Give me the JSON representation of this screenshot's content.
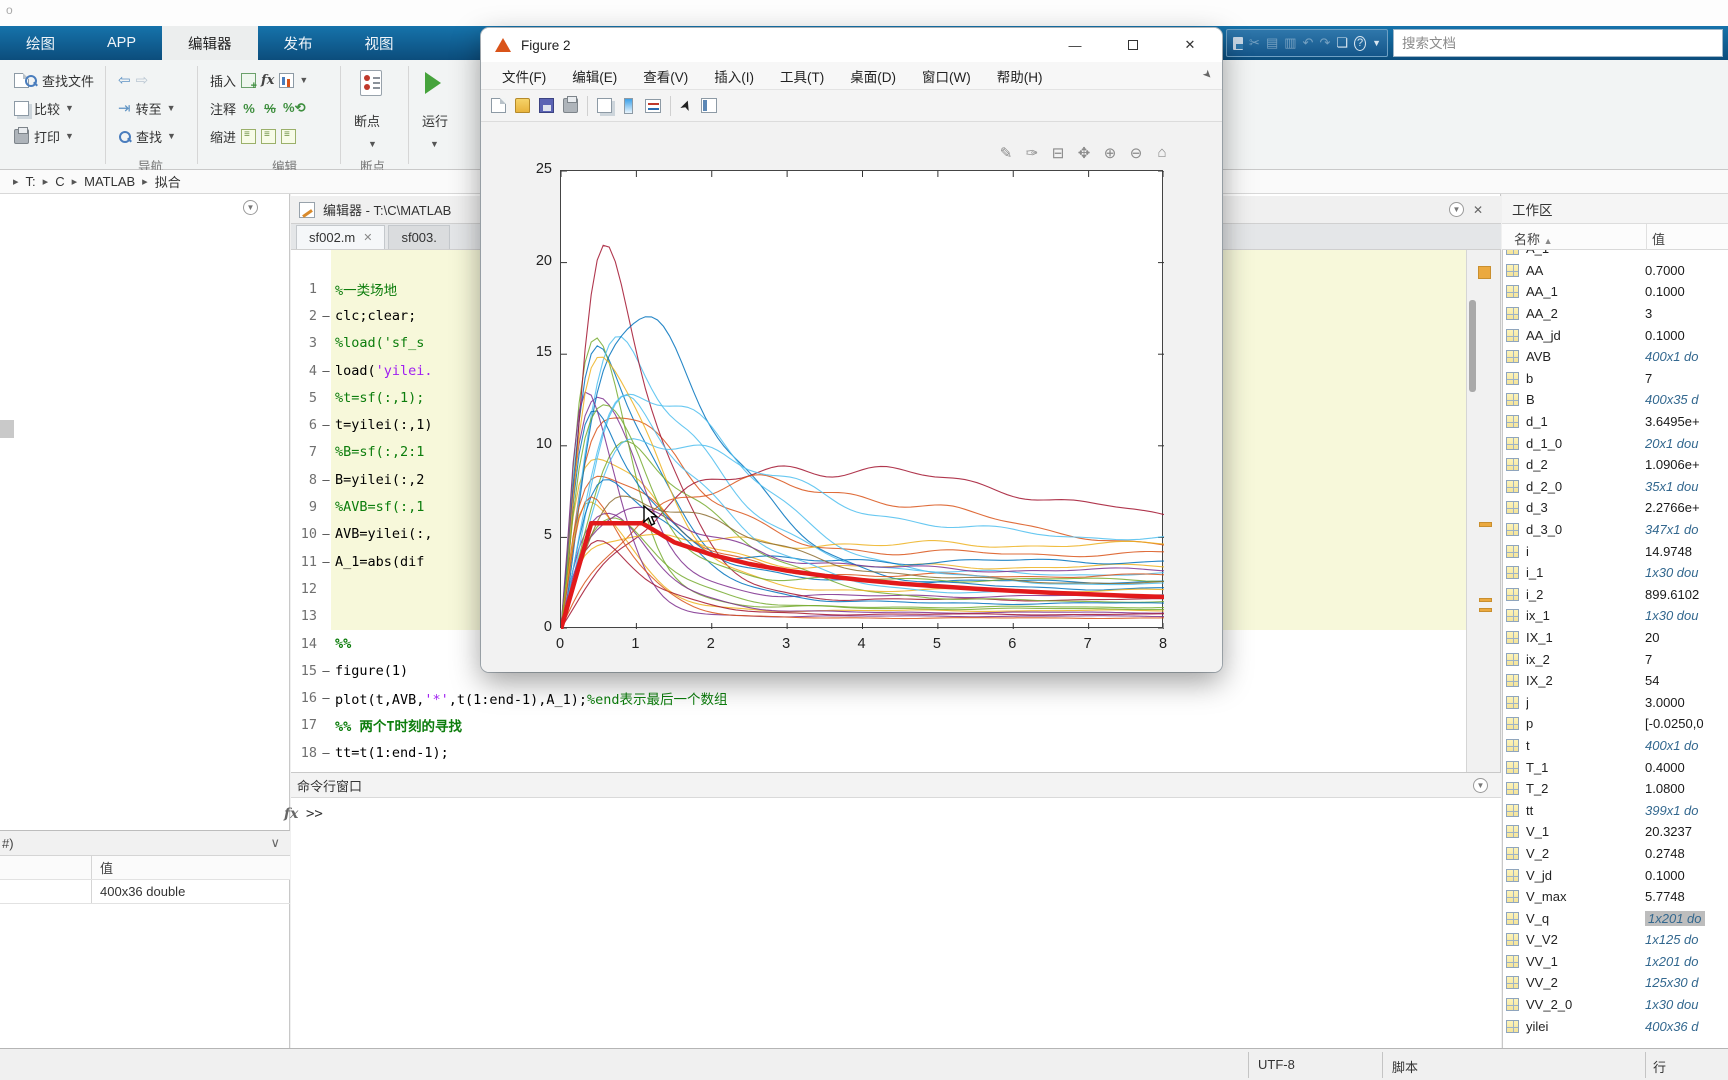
{
  "overlay": {
    "corner_mark": "o"
  },
  "ribbon": {
    "tabs": [
      {
        "id": "plots",
        "label": "绘图"
      },
      {
        "id": "apps",
        "label": "APP"
      },
      {
        "id": "editor",
        "label": "编辑器"
      },
      {
        "id": "publish",
        "label": "发布"
      },
      {
        "id": "view",
        "label": "视图"
      }
    ],
    "active_tab": "编辑器",
    "file_group": {
      "find_files": "查找文件",
      "compare": "比较",
      "print": "打印"
    },
    "nav_group": {
      "goto": "转至",
      "find": "查找",
      "label": "导航"
    },
    "edit_group": {
      "insert": "插入",
      "comment": "注释",
      "indent": "缩进",
      "fx": "fx",
      "label": "编辑"
    },
    "breakpoint_group": {
      "button": "断点",
      "label": "断点"
    },
    "run_group": {
      "run": "运行"
    },
    "search_placeholder": "搜索文档"
  },
  "breadcrumb": {
    "items": [
      "T:",
      "C",
      "MATLAB",
      "拟合"
    ]
  },
  "figure_window": {
    "title": "Figure 2",
    "menus": [
      "文件(F)",
      "编辑(E)",
      "查看(V)",
      "插入(I)",
      "工具(T)",
      "桌面(D)",
      "窗口(W)",
      "帮助(H)"
    ],
    "toolbar_icons": [
      "new-figure",
      "open",
      "save",
      "print",
      "link-plot",
      "insert-colorbar",
      "insert-legend",
      "pointer",
      "property-inspector"
    ],
    "axes_toolbar_icons": [
      "export",
      "brush",
      "datatips",
      "pan",
      "zoom-in",
      "zoom-out",
      "restore-view"
    ]
  },
  "chart_data": {
    "type": "line",
    "title": "",
    "xlabel": "",
    "ylabel": "",
    "xlim": [
      0,
      8
    ],
    "ylim": [
      0,
      25
    ],
    "xticks": [
      0,
      1,
      2,
      3,
      4,
      5,
      6,
      7,
      8
    ],
    "yticks": [
      0,
      5,
      10,
      15,
      20,
      25
    ],
    "grid": false,
    "legend": "none",
    "red_curve": {
      "name": "fitted design spectrum (thick red)",
      "color": "#e2191b",
      "points": [
        [
          0,
          0
        ],
        [
          0.4,
          5.77
        ],
        [
          1.08,
          5.77
        ],
        [
          1.5,
          4.74
        ],
        [
          2,
          4.05
        ],
        [
          2.5,
          3.55
        ],
        [
          3,
          3.18
        ],
        [
          3.5,
          2.9
        ],
        [
          4,
          2.67
        ],
        [
          4.5,
          2.48
        ],
        [
          5,
          2.33
        ],
        [
          5.5,
          2.2
        ],
        [
          6,
          2.08
        ],
        [
          6.5,
          1.98
        ],
        [
          7,
          1.9
        ],
        [
          7.5,
          1.82
        ],
        [
          8,
          1.75
        ]
      ]
    },
    "ensemble": {
      "description": "individual response-spectrum curves (thin lines), parametric peaks",
      "series": [
        {
          "color": "#0072BD",
          "peak_x": 0.55,
          "peak_y": 14.8,
          "tail_y": 2.6,
          "phase": 0.3,
          "exp": 1.4
        },
        {
          "color": "#D95319",
          "peak_x": 0.75,
          "peak_y": 12.4,
          "tail_y": 4.1,
          "phase": 1.1,
          "exp": 1.4
        },
        {
          "color": "#EDB120",
          "peak_x": 0.5,
          "peak_y": 10.2,
          "tail_y": 3.4,
          "phase": 2.0,
          "exp": 1.2
        },
        {
          "color": "#7E2F8E",
          "peak_x": 0.45,
          "peak_y": 13.6,
          "tail_y": 1.8,
          "phase": 2.8,
          "exp": 1.4
        },
        {
          "color": "#77AC30",
          "peak_x": 0.42,
          "peak_y": 16.0,
          "tail_y": 1.2,
          "phase": 3.6,
          "exp": 1.6
        },
        {
          "color": "#4DBEEE",
          "peak_x": 0.85,
          "peak_y": 15.2,
          "tail_y": 3.0,
          "phase": 4.4,
          "exp": 1.4
        },
        {
          "color": "#A2142F",
          "peak_x": 0.62,
          "peak_y": 20.3,
          "tail_y": 1.6,
          "phase": 5.2,
          "exp": 1.8
        },
        {
          "color": "#0072BD",
          "peak_x": 1.0,
          "peak_y": 17.5,
          "tail_y": 2.2,
          "phase": 0.7,
          "exp": 1.6
        },
        {
          "color": "#D95319",
          "peak_x": 0.58,
          "peak_y": 9.0,
          "tail_y": 2.9,
          "phase": 1.5,
          "exp": 1.2
        },
        {
          "color": "#EDB120",
          "peak_x": 0.4,
          "peak_y": 7.6,
          "tail_y": 1.0,
          "phase": 2.3,
          "exp": 1.4
        },
        {
          "color": "#7E2F8E",
          "peak_x": 0.52,
          "peak_y": 6.4,
          "tail_y": 0.9,
          "phase": 3.1,
          "exp": 1.3
        },
        {
          "color": "#77AC30",
          "peak_x": 0.95,
          "peak_y": 9.6,
          "tail_y": 1.5,
          "phase": 3.9,
          "exp": 1.4
        },
        {
          "color": "#4DBEEE",
          "peak_x": 1.15,
          "peak_y": 13.4,
          "tail_y": 2.4,
          "phase": 4.7,
          "exp": 1.5
        },
        {
          "color": "#A2142F",
          "peak_x": 3.4,
          "peak_y": 8.8,
          "tail_y": 1.9,
          "phase": 5.5,
          "exp": 1.0
        },
        {
          "color": "#0072BD",
          "peak_x": 0.48,
          "peak_y": 11.2,
          "tail_y": 3.7,
          "phase": 0.2,
          "exp": 1.4
        },
        {
          "color": "#D95319",
          "peak_x": 2.6,
          "peak_y": 7.9,
          "tail_y": 2.3,
          "phase": 1.0,
          "exp": 1.0
        },
        {
          "color": "#EDB120",
          "peak_x": 0.7,
          "peak_y": 5.2,
          "tail_y": 4.6,
          "phase": 1.8,
          "exp": 1.2
        },
        {
          "color": "#7E2F8E",
          "peak_x": 0.35,
          "peak_y": 14.2,
          "tail_y": 0.7,
          "phase": 2.6,
          "exp": 1.7
        },
        {
          "color": "#77AC30",
          "peak_x": 0.6,
          "peak_y": 5.8,
          "tail_y": 1.1,
          "phase": 3.4,
          "exp": 1.3
        },
        {
          "color": "#4DBEEE",
          "peak_x": 1.3,
          "peak_y": 10.6,
          "tail_y": 4.9,
          "phase": 4.2,
          "exp": 1.3
        },
        {
          "color": "#A2142F",
          "peak_x": 0.5,
          "peak_y": 4.6,
          "tail_y": 0.8,
          "phase": 5.0,
          "exp": 1.3
        },
        {
          "color": "#0072BD",
          "peak_x": 0.68,
          "peak_y": 8.2,
          "tail_y": 1.4,
          "phase": 5.8,
          "exp": 1.4
        },
        {
          "color": "#D95319",
          "peak_x": 0.44,
          "peak_y": 6.8,
          "tail_y": 0.6,
          "phase": 0.5,
          "exp": 1.4
        },
        {
          "color": "#EDB120",
          "peak_x": 0.58,
          "peak_y": 15.8,
          "tail_y": 2.1,
          "phase": 1.3,
          "exp": 1.6
        },
        {
          "color": "#7E2F8E",
          "peak_x": 0.8,
          "peak_y": 6.6,
          "tail_y": 3.2,
          "phase": 2.1,
          "exp": 1.1
        },
        {
          "color": "#77AC30",
          "peak_x": 0.5,
          "peak_y": 12.8,
          "tail_y": 2.7,
          "phase": 2.9,
          "exp": 1.5
        },
        {
          "color": "#4DBEEE",
          "peak_x": 0.9,
          "peak_y": 11.8,
          "tail_y": 1.9,
          "phase": 3.7,
          "exp": 1.4
        },
        {
          "color": "#8c6d31",
          "peak_x": 1.05,
          "peak_y": 7.2,
          "tail_y": 2.5,
          "phase": 4.5,
          "exp": 1.2
        }
      ]
    }
  },
  "editor": {
    "title": "编辑器 - T:\\C\\MATLAB",
    "tabs": [
      "sf002.m",
      "sf003."
    ],
    "active_tab": "sf002.m",
    "lines": [
      {
        "n": 1,
        "exec": false,
        "segs": [
          {
            "t": "%一类场地",
            "k": "comment"
          }
        ]
      },
      {
        "n": 2,
        "exec": true,
        "segs": [
          {
            "t": "clc;clear;",
            "k": "code"
          }
        ]
      },
      {
        "n": 3,
        "exec": false,
        "segs": [
          {
            "t": "%load('sf_s",
            "k": "comment"
          }
        ]
      },
      {
        "n": 4,
        "exec": true,
        "segs": [
          {
            "t": "load(",
            "k": "code"
          },
          {
            "t": "'yilei.",
            "k": "string"
          }
        ]
      },
      {
        "n": 5,
        "exec": false,
        "segs": [
          {
            "t": "%t=sf(:,1);",
            "k": "comment"
          }
        ]
      },
      {
        "n": 6,
        "exec": true,
        "segs": [
          {
            "t": "t=yilei(:,1)",
            "k": "code"
          }
        ]
      },
      {
        "n": 7,
        "exec": false,
        "segs": [
          {
            "t": "%B=sf(:,2:1",
            "k": "comment"
          }
        ]
      },
      {
        "n": 8,
        "exec": true,
        "segs": [
          {
            "t": "B=yilei(:,2",
            "k": "code"
          }
        ]
      },
      {
        "n": 9,
        "exec": false,
        "segs": [
          {
            "t": "%AVB=sf(:,1",
            "k": "comment"
          }
        ]
      },
      {
        "n": 10,
        "exec": true,
        "segs": [
          {
            "t": "AVB=yilei(:,",
            "k": "code"
          }
        ]
      },
      {
        "n": 11,
        "exec": true,
        "segs": [
          {
            "t": "A_1=abs(dif",
            "k": "code"
          }
        ]
      },
      {
        "n": 12,
        "exec": false,
        "segs": []
      },
      {
        "n": 13,
        "exec": false,
        "segs": []
      },
      {
        "n": 14,
        "exec": false,
        "segs": [
          {
            "t": "%%",
            "k": "section"
          }
        ]
      },
      {
        "n": 15,
        "exec": true,
        "segs": [
          {
            "t": "figure(1)",
            "k": "code"
          }
        ]
      },
      {
        "n": 16,
        "exec": true,
        "segs": [
          {
            "t": "plot(t,AVB,",
            "k": "code"
          },
          {
            "t": "'*'",
            "k": "string"
          },
          {
            "t": ",t(1:end-1),A_1);",
            "k": "code"
          },
          {
            "t": "%end表示最后一个数组",
            "k": "comment"
          }
        ]
      },
      {
        "n": 17,
        "exec": false,
        "segs": [
          {
            "t": "%% 两个T时刻的寻找",
            "k": "section"
          }
        ]
      },
      {
        "n": 18,
        "exec": true,
        "segs": [
          {
            "t": "tt=t(1:end-1);",
            "k": "code"
          }
        ]
      }
    ]
  },
  "command_window": {
    "title": "命令行窗口",
    "fx": "fx",
    "prompt": ">>"
  },
  "details_panel": {
    "header": "#)",
    "col_value": "值",
    "value": "400x36 double"
  },
  "workspace": {
    "title": "工作区",
    "col_name": "名称",
    "col_value": "值",
    "rows": [
      {
        "name": "A_1",
        "value": "",
        "kind": "dim",
        "partial": true
      },
      {
        "name": "AA",
        "value": "0.7000",
        "kind": "num"
      },
      {
        "name": "AA_1",
        "value": "0.1000",
        "kind": "num"
      },
      {
        "name": "AA_2",
        "value": "3",
        "kind": "num"
      },
      {
        "name": "AA_jd",
        "value": "0.1000",
        "kind": "num"
      },
      {
        "name": "AVB",
        "value": "400x1 do",
        "kind": "dim"
      },
      {
        "name": "b",
        "value": "7",
        "kind": "num"
      },
      {
        "name": "B",
        "value": "400x35 d",
        "kind": "dim"
      },
      {
        "name": "d_1",
        "value": "3.6495e+",
        "kind": "num"
      },
      {
        "name": "d_1_0",
        "value": "20x1 dou",
        "kind": "dim"
      },
      {
        "name": "d_2",
        "value": "1.0906e+",
        "kind": "num"
      },
      {
        "name": "d_2_0",
        "value": "35x1 dou",
        "kind": "dim"
      },
      {
        "name": "d_3",
        "value": "2.2766e+",
        "kind": "num"
      },
      {
        "name": "d_3_0",
        "value": "347x1 do",
        "kind": "dim"
      },
      {
        "name": "i",
        "value": "14.9748",
        "kind": "num"
      },
      {
        "name": "i_1",
        "value": "1x30 dou",
        "kind": "dim"
      },
      {
        "name": "i_2",
        "value": "899.6102",
        "kind": "num"
      },
      {
        "name": "ix_1",
        "value": "1x30 dou",
        "kind": "dim"
      },
      {
        "name": "IX_1",
        "value": "20",
        "kind": "num"
      },
      {
        "name": "ix_2",
        "value": "7",
        "kind": "num"
      },
      {
        "name": "IX_2",
        "value": "54",
        "kind": "num"
      },
      {
        "name": "j",
        "value": "3.0000",
        "kind": "num"
      },
      {
        "name": "p",
        "value": "[-0.0250,0",
        "kind": "num"
      },
      {
        "name": "t",
        "value": "400x1 do",
        "kind": "dim"
      },
      {
        "name": "T_1",
        "value": "0.4000",
        "kind": "num"
      },
      {
        "name": "T_2",
        "value": "1.0800",
        "kind": "num"
      },
      {
        "name": "tt",
        "value": "399x1 do",
        "kind": "dim"
      },
      {
        "name": "V_1",
        "value": "20.3237",
        "kind": "num"
      },
      {
        "name": "V_2",
        "value": "0.2748",
        "kind": "num"
      },
      {
        "name": "V_jd",
        "value": "0.1000",
        "kind": "num"
      },
      {
        "name": "V_max",
        "value": "5.7748",
        "kind": "num"
      },
      {
        "name": "V_q",
        "value": "1x201 do",
        "kind": "dim",
        "selected": true
      },
      {
        "name": "V_V2",
        "value": "1x125 do",
        "kind": "dim"
      },
      {
        "name": "VV_1",
        "value": "1x201 do",
        "kind": "dim"
      },
      {
        "name": "VV_2",
        "value": "125x30 d",
        "kind": "dim"
      },
      {
        "name": "VV_2_0",
        "value": "1x30 dou",
        "kind": "dim"
      },
      {
        "name": "yilei",
        "value": "400x36 d",
        "kind": "dim"
      }
    ]
  },
  "statusbar": {
    "encoding": "UTF-8",
    "type": "脚本",
    "line_label": "行"
  }
}
